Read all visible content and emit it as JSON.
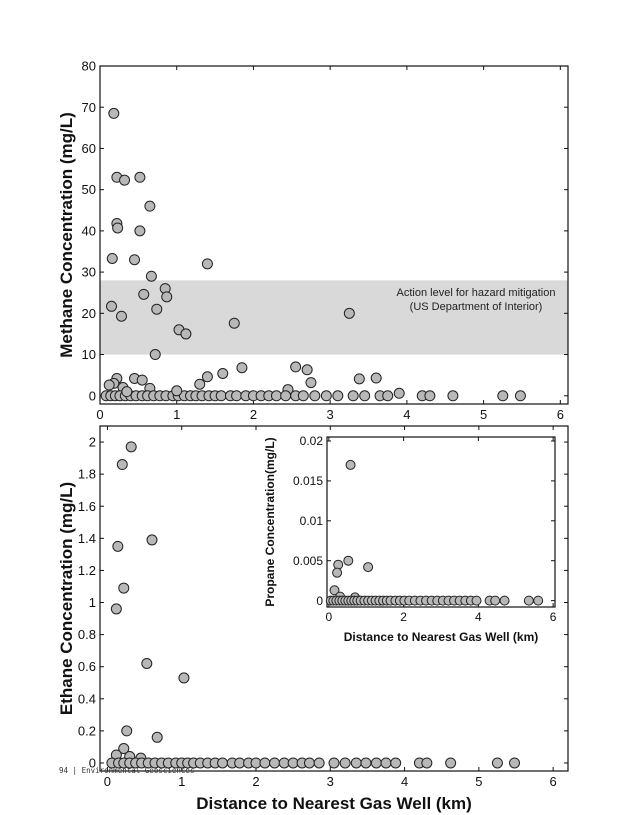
{
  "footer": {
    "text": "94 | Environmental Geosciences"
  },
  "colors": {
    "marker_fill": "#b8b8b8",
    "marker_stroke": "#222222",
    "band_fill": "#d9d9d9"
  },
  "chart_data": [
    {
      "id": "methane",
      "type": "scatter",
      "xlabel": "",
      "ylabel": "Methane Concentration (mg/L)",
      "xlim": [
        0,
        6.1
      ],
      "ylim": [
        -2,
        80
      ],
      "xticks": [
        0,
        1,
        2,
        3,
        4,
        5,
        6
      ],
      "yticks": [
        0,
        10,
        20,
        30,
        40,
        50,
        60,
        70,
        80
      ],
      "band": {
        "y_from": 10,
        "y_to": 28,
        "label_lines": [
          "Action level for hazard mitigation",
          "(US Department of Interior)"
        ]
      },
      "points": [
        [
          0.18,
          68.5
        ],
        [
          0.22,
          53
        ],
        [
          0.32,
          52.3
        ],
        [
          0.52,
          53
        ],
        [
          0.22,
          41.8
        ],
        [
          0.23,
          40.7
        ],
        [
          0.65,
          46
        ],
        [
          0.52,
          40
        ],
        [
          0.45,
          33
        ],
        [
          0.16,
          33.3
        ],
        [
          0.67,
          29
        ],
        [
          0.57,
          24.6
        ],
        [
          0.85,
          26
        ],
        [
          0.87,
          24
        ],
        [
          0.74,
          21
        ],
        [
          0.15,
          21.7
        ],
        [
          0.28,
          19.3
        ],
        [
          1.4,
          32
        ],
        [
          1.03,
          16
        ],
        [
          1.12,
          15
        ],
        [
          1.75,
          17.6
        ],
        [
          3.25,
          20
        ],
        [
          0.72,
          10
        ],
        [
          0.22,
          4.2
        ],
        [
          0.18,
          3.0
        ],
        [
          0.12,
          2.6
        ],
        [
          0.45,
          4.2
        ],
        [
          0.55,
          3.8
        ],
        [
          0.3,
          2.0
        ],
        [
          0.65,
          1.8
        ],
        [
          1.3,
          2.8
        ],
        [
          1.4,
          4.6
        ],
        [
          1.6,
          5.4
        ],
        [
          1.85,
          6.8
        ],
        [
          2.55,
          7
        ],
        [
          2.7,
          6.3
        ],
        [
          2.75,
          3.2
        ],
        [
          2.45,
          1.5
        ],
        [
          3.38,
          4.1
        ],
        [
          3.6,
          4.3
        ],
        [
          3.9,
          0.6
        ],
        [
          0.08,
          0
        ],
        [
          0.14,
          0
        ],
        [
          0.2,
          0
        ],
        [
          0.26,
          0
        ],
        [
          0.33,
          0
        ],
        [
          0.4,
          0
        ],
        [
          0.47,
          0
        ],
        [
          0.55,
          0
        ],
        [
          0.62,
          0
        ],
        [
          0.7,
          0
        ],
        [
          0.78,
          0
        ],
        [
          0.86,
          0
        ],
        [
          0.95,
          0
        ],
        [
          1.02,
          0
        ],
        [
          1.1,
          0
        ],
        [
          1.18,
          0
        ],
        [
          1.25,
          0
        ],
        [
          1.33,
          0
        ],
        [
          1.42,
          0
        ],
        [
          1.5,
          0
        ],
        [
          1.58,
          0
        ],
        [
          1.7,
          0
        ],
        [
          1.78,
          0
        ],
        [
          1.9,
          0
        ],
        [
          2.0,
          0
        ],
        [
          2.1,
          0
        ],
        [
          2.2,
          0
        ],
        [
          2.3,
          0
        ],
        [
          2.42,
          0
        ],
        [
          2.55,
          0
        ],
        [
          2.65,
          0
        ],
        [
          2.8,
          0
        ],
        [
          2.95,
          0
        ],
        [
          3.1,
          0
        ],
        [
          3.3,
          0
        ],
        [
          3.45,
          0
        ],
        [
          3.65,
          0
        ],
        [
          3.75,
          0
        ],
        [
          4.2,
          0
        ],
        [
          4.3,
          0
        ],
        [
          4.6,
          0
        ],
        [
          5.25,
          0
        ],
        [
          5.48,
          0
        ],
        [
          1.0,
          1.2
        ],
        [
          0.35,
          1.0
        ]
      ]
    },
    {
      "id": "ethane",
      "type": "scatter",
      "xlabel": "Distance to Nearest Gas Well (km)",
      "ylabel": "Ethane Concentration (mg/L)",
      "xlim": [
        -0.1,
        6.2
      ],
      "ylim": [
        -0.05,
        2.1
      ],
      "xticks": [
        0,
        1,
        2,
        3,
        4,
        5,
        6
      ],
      "yticks": [
        0,
        0.2,
        0.4,
        0.6,
        0.8,
        1,
        1.2,
        1.4,
        1.6,
        1.8,
        2
      ],
      "ytick_labels": [
        "0",
        "0.2",
        "0.4",
        "0.6",
        "0.8",
        "1",
        "1.2",
        "1.4",
        "1.6",
        "1.8",
        "2"
      ],
      "points": [
        [
          0.32,
          1.97
        ],
        [
          0.2,
          1.86
        ],
        [
          0.14,
          1.35
        ],
        [
          0.6,
          1.39
        ],
        [
          0.22,
          1.09
        ],
        [
          0.12,
          0.96
        ],
        [
          0.53,
          0.62
        ],
        [
          1.03,
          0.53
        ],
        [
          0.26,
          0.2
        ],
        [
          0.67,
          0.16
        ],
        [
          0.22,
          0.09
        ],
        [
          0.12,
          0.05
        ],
        [
          0.3,
          0.04
        ],
        [
          0.45,
          0.03
        ],
        [
          0.06,
          0
        ],
        [
          0.15,
          0
        ],
        [
          0.22,
          0
        ],
        [
          0.3,
          0
        ],
        [
          0.38,
          0
        ],
        [
          0.46,
          0
        ],
        [
          0.55,
          0
        ],
        [
          0.64,
          0
        ],
        [
          0.73,
          0
        ],
        [
          0.82,
          0
        ],
        [
          0.92,
          0
        ],
        [
          1.0,
          0
        ],
        [
          1.08,
          0
        ],
        [
          1.16,
          0
        ],
        [
          1.25,
          0
        ],
        [
          1.35,
          0
        ],
        [
          1.45,
          0
        ],
        [
          1.55,
          0
        ],
        [
          1.68,
          0
        ],
        [
          1.78,
          0
        ],
        [
          1.9,
          0
        ],
        [
          2.0,
          0
        ],
        [
          2.12,
          0
        ],
        [
          2.25,
          0
        ],
        [
          2.38,
          0
        ],
        [
          2.5,
          0
        ],
        [
          2.62,
          0
        ],
        [
          2.72,
          0
        ],
        [
          2.85,
          0
        ],
        [
          3.05,
          0
        ],
        [
          3.2,
          0
        ],
        [
          3.35,
          0
        ],
        [
          3.48,
          0
        ],
        [
          3.62,
          0
        ],
        [
          3.75,
          0
        ],
        [
          3.88,
          0
        ],
        [
          4.2,
          0
        ],
        [
          4.3,
          0
        ],
        [
          4.62,
          0
        ],
        [
          5.25,
          0
        ],
        [
          5.48,
          0
        ]
      ]
    },
    {
      "id": "propane",
      "type": "scatter",
      "xlabel": "Distance to Nearest Gas Well (km)",
      "ylabel": "Propane Concentration(mg/L)",
      "xlim": [
        -0.05,
        6.05
      ],
      "ylim": [
        -0.0008,
        0.0205
      ],
      "xticks": [
        0,
        2,
        4,
        6
      ],
      "yticks": [
        0,
        0.005,
        0.01,
        0.015,
        0.02
      ],
      "ytick_labels": [
        "0",
        "0.005",
        "0.01",
        "0.015",
        "0.02"
      ],
      "points": [
        [
          0.58,
          0.017
        ],
        [
          0.52,
          0.005
        ],
        [
          0.25,
          0.0045
        ],
        [
          0.22,
          0.0035
        ],
        [
          1.05,
          0.0042
        ],
        [
          0.15,
          0.0013
        ],
        [
          0.3,
          0.0005
        ],
        [
          0.7,
          0.0004
        ],
        [
          0.05,
          0
        ],
        [
          0.12,
          0
        ],
        [
          0.2,
          0
        ],
        [
          0.28,
          0
        ],
        [
          0.36,
          0
        ],
        [
          0.44,
          0
        ],
        [
          0.52,
          0
        ],
        [
          0.6,
          0
        ],
        [
          0.68,
          0
        ],
        [
          0.76,
          0
        ],
        [
          0.85,
          0
        ],
        [
          0.95,
          0
        ],
        [
          1.05,
          0
        ],
        [
          1.15,
          0
        ],
        [
          1.25,
          0
        ],
        [
          1.35,
          0
        ],
        [
          1.45,
          0
        ],
        [
          1.55,
          0
        ],
        [
          1.65,
          0
        ],
        [
          1.78,
          0
        ],
        [
          1.9,
          0
        ],
        [
          2.02,
          0
        ],
        [
          2.15,
          0
        ],
        [
          2.3,
          0
        ],
        [
          2.45,
          0
        ],
        [
          2.6,
          0
        ],
        [
          2.75,
          0
        ],
        [
          2.9,
          0
        ],
        [
          3.05,
          0
        ],
        [
          3.2,
          0
        ],
        [
          3.35,
          0
        ],
        [
          3.5,
          0
        ],
        [
          3.65,
          0
        ],
        [
          3.8,
          0
        ],
        [
          3.95,
          0
        ],
        [
          4.3,
          0
        ],
        [
          4.45,
          0
        ],
        [
          4.7,
          0
        ],
        [
          5.35,
          0
        ],
        [
          5.6,
          0
        ]
      ]
    }
  ]
}
